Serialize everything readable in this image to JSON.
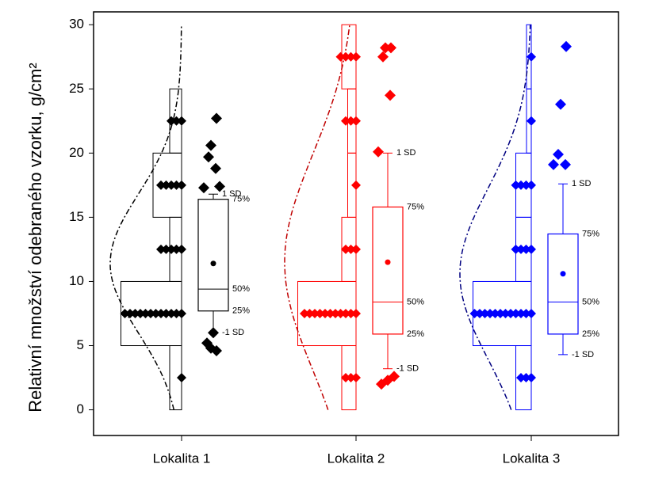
{
  "chart_data": {
    "type": "hist-box",
    "y_label": "Relativní množství odebraného vzorku, g/cm²",
    "ylim": [
      -2,
      31
    ],
    "yticks": [
      0,
      5,
      10,
      15,
      20,
      25,
      30
    ],
    "categories": [
      "Lokalita 1",
      "Lokalita 2",
      "Lokalita 3"
    ],
    "hist_bins": [
      0,
      5,
      10,
      15,
      20,
      25,
      30
    ],
    "dot_values": [
      2.5,
      7.5,
      12.5,
      17.5,
      22.5,
      27.5
    ],
    "groups": [
      {
        "color": "#000000",
        "curve_color": "#000000",
        "hist_counts": [
          1,
          5.1,
          1,
          2.4,
          1,
          0
        ],
        "dot_counts": [
          1,
          12,
          5,
          5,
          3,
          0
        ],
        "q1": 7.7,
        "median": 9.4,
        "q3": 16.4,
        "sd_low": 6.0,
        "sd_high": 16.8,
        "mean": 11.4,
        "outliers": [
          22.7,
          20.6,
          19.7,
          18.8,
          17.3,
          17.4,
          6.0,
          5.2,
          4.8,
          4.6
        ],
        "labels": {
          "sd_high": "1 SD",
          "q3": "75%",
          "median": "50%",
          "q1": "25%",
          "sd_low": "-1 SD"
        }
      },
      {
        "color": "#ff0000",
        "curve_color": "#c00000",
        "hist_counts": [
          1.2,
          4.9,
          1.2,
          0.7,
          0.7,
          1.2
        ],
        "dot_counts": [
          3,
          11,
          3,
          1,
          3,
          4
        ],
        "q1": 5.9,
        "median": 8.4,
        "q3": 15.8,
        "sd_low": 3.2,
        "sd_high": 20.0,
        "mean": 11.5,
        "outliers": [
          28.2,
          28.2,
          27.5,
          24.5,
          20.1,
          2.6,
          2.3,
          2.0
        ],
        "labels": {
          "sd_high": "1 SD",
          "q3": "75%",
          "median": "50%",
          "q1": "25%",
          "sd_low": "-1 SD"
        }
      },
      {
        "color": "#0000ff",
        "curve_color": "#000080",
        "hist_counts": [
          1.3,
          4.9,
          1.3,
          1.3,
          0.4,
          0.4
        ],
        "dot_counts": [
          3,
          12,
          4,
          4,
          1,
          1
        ],
        "q1": 5.9,
        "median": 8.4,
        "q3": 13.7,
        "sd_low": 4.3,
        "sd_high": 17.6,
        "mean": 10.6,
        "outliers": [
          28.3,
          23.8,
          19.9,
          19.1,
          19.1
        ],
        "labels": {
          "sd_high": "1 SD",
          "q3": "75%",
          "median": "50%",
          "q1": "25%",
          "sd_low": "-1 SD"
        }
      }
    ]
  }
}
